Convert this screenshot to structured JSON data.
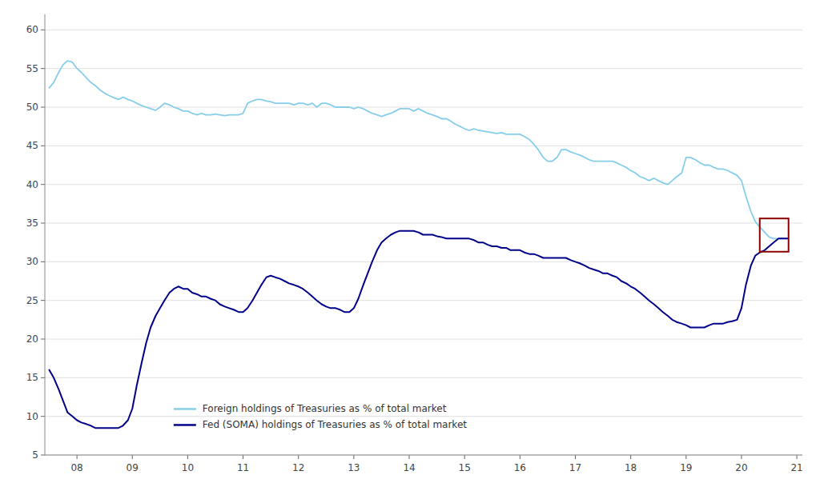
{
  "chart_data": {
    "type": "line",
    "x": [
      2007.5,
      2007.58,
      2007.67,
      2007.75,
      2007.83,
      2007.92,
      2008.0,
      2008.08,
      2008.17,
      2008.25,
      2008.33,
      2008.42,
      2008.5,
      2008.58,
      2008.67,
      2008.75,
      2008.83,
      2008.92,
      2009.0,
      2009.08,
      2009.17,
      2009.25,
      2009.33,
      2009.42,
      2009.5,
      2009.58,
      2009.67,
      2009.75,
      2009.83,
      2009.92,
      2010.0,
      2010.08,
      2010.17,
      2010.25,
      2010.33,
      2010.42,
      2010.5,
      2010.58,
      2010.67,
      2010.75,
      2010.83,
      2010.92,
      2011.0,
      2011.08,
      2011.17,
      2011.25,
      2011.33,
      2011.42,
      2011.5,
      2011.58,
      2011.67,
      2011.75,
      2011.83,
      2011.92,
      2012.0,
      2012.08,
      2012.17,
      2012.25,
      2012.33,
      2012.42,
      2012.5,
      2012.58,
      2012.67,
      2012.75,
      2012.83,
      2012.92,
      2013.0,
      2013.08,
      2013.17,
      2013.25,
      2013.33,
      2013.42,
      2013.5,
      2013.58,
      2013.67,
      2013.75,
      2013.83,
      2013.92,
      2014.0,
      2014.08,
      2014.17,
      2014.25,
      2014.33,
      2014.42,
      2014.5,
      2014.58,
      2014.67,
      2014.75,
      2014.83,
      2014.92,
      2015.0,
      2015.08,
      2015.17,
      2015.25,
      2015.33,
      2015.42,
      2015.5,
      2015.58,
      2015.67,
      2015.75,
      2015.83,
      2015.92,
      2016.0,
      2016.08,
      2016.17,
      2016.25,
      2016.33,
      2016.42,
      2016.5,
      2016.58,
      2016.67,
      2016.75,
      2016.83,
      2016.92,
      2017.0,
      2017.08,
      2017.17,
      2017.25,
      2017.33,
      2017.42,
      2017.5,
      2017.58,
      2017.67,
      2017.75,
      2017.83,
      2017.92,
      2018.0,
      2018.08,
      2018.17,
      2018.25,
      2018.33,
      2018.42,
      2018.5,
      2018.58,
      2018.67,
      2018.75,
      2018.83,
      2018.92,
      2019.0,
      2019.08,
      2019.17,
      2019.25,
      2019.33,
      2019.42,
      2019.5,
      2019.58,
      2019.67,
      2019.75,
      2019.83,
      2019.92,
      2020.0,
      2020.08,
      2020.17,
      2020.25,
      2020.33,
      2020.42,
      2020.5,
      2020.58,
      2020.67,
      2020.75,
      2020.83
    ],
    "series": [
      {
        "name": "Foreign holdings of Treasuries as % of total market",
        "color": "#87CEEB",
        "values": [
          52.5,
          53.2,
          54.5,
          55.5,
          56.0,
          55.8,
          55.0,
          54.5,
          53.8,
          53.2,
          52.8,
          52.2,
          51.8,
          51.5,
          51.2,
          51.0,
          51.3,
          51.0,
          50.8,
          50.5,
          50.2,
          50.0,
          49.8,
          49.6,
          50.0,
          50.5,
          50.3,
          50.0,
          49.8,
          49.5,
          49.5,
          49.2,
          49.0,
          49.2,
          49.0,
          49.0,
          49.1,
          49.0,
          48.9,
          49.0,
          49.0,
          49.0,
          49.2,
          50.5,
          50.8,
          51.0,
          51.0,
          50.8,
          50.7,
          50.5,
          50.5,
          50.5,
          50.5,
          50.3,
          50.5,
          50.5,
          50.3,
          50.5,
          50.0,
          50.5,
          50.5,
          50.3,
          50.0,
          50.0,
          50.0,
          50.0,
          49.8,
          50.0,
          49.8,
          49.5,
          49.2,
          49.0,
          48.8,
          49.0,
          49.2,
          49.5,
          49.8,
          49.8,
          49.8,
          49.5,
          49.8,
          49.5,
          49.2,
          49.0,
          48.8,
          48.5,
          48.5,
          48.2,
          47.8,
          47.5,
          47.2,
          47.0,
          47.2,
          47.0,
          46.9,
          46.8,
          46.7,
          46.6,
          46.7,
          46.5,
          46.5,
          46.5,
          46.5,
          46.2,
          45.8,
          45.2,
          44.5,
          43.5,
          43.0,
          43.0,
          43.5,
          44.5,
          44.5,
          44.2,
          44.0,
          43.8,
          43.5,
          43.2,
          43.0,
          43.0,
          43.0,
          43.0,
          43.0,
          42.8,
          42.5,
          42.2,
          41.8,
          41.5,
          41.0,
          40.8,
          40.5,
          40.8,
          40.5,
          40.2,
          40.0,
          40.5,
          41.0,
          41.5,
          43.5,
          43.5,
          43.2,
          42.8,
          42.5,
          42.5,
          42.2,
          42.0,
          42.0,
          41.8,
          41.5,
          41.2,
          40.5,
          38.5,
          36.5,
          35.2,
          34.5,
          33.8,
          33.2,
          33.0,
          33.0,
          33.0,
          33.0
        ]
      },
      {
        "name": "Fed (SOMA) holdings of Treasuries as % of total market",
        "color": "#00008B",
        "values": [
          16.0,
          15.0,
          13.5,
          12.0,
          10.5,
          10.0,
          9.5,
          9.2,
          9.0,
          8.8,
          8.5,
          8.5,
          8.5,
          8.5,
          8.5,
          8.5,
          8.8,
          9.5,
          11.0,
          14.0,
          17.0,
          19.5,
          21.5,
          23.0,
          24.0,
          25.0,
          26.0,
          26.5,
          26.8,
          26.5,
          26.5,
          26.0,
          25.8,
          25.5,
          25.5,
          25.2,
          25.0,
          24.5,
          24.2,
          24.0,
          23.8,
          23.5,
          23.5,
          24.0,
          25.0,
          26.0,
          27.0,
          28.0,
          28.2,
          28.0,
          27.8,
          27.5,
          27.2,
          27.0,
          26.8,
          26.5,
          26.0,
          25.5,
          25.0,
          24.5,
          24.2,
          24.0,
          24.0,
          23.8,
          23.5,
          23.5,
          24.0,
          25.2,
          27.0,
          28.5,
          30.0,
          31.5,
          32.5,
          33.0,
          33.5,
          33.8,
          34.0,
          34.0,
          34.0,
          34.0,
          33.8,
          33.5,
          33.5,
          33.5,
          33.3,
          33.2,
          33.0,
          33.0,
          33.0,
          33.0,
          33.0,
          33.0,
          32.8,
          32.5,
          32.5,
          32.2,
          32.0,
          32.0,
          31.8,
          31.8,
          31.5,
          31.5,
          31.5,
          31.2,
          31.0,
          31.0,
          30.8,
          30.5,
          30.5,
          30.5,
          30.5,
          30.5,
          30.5,
          30.2,
          30.0,
          29.8,
          29.5,
          29.2,
          29.0,
          28.8,
          28.5,
          28.5,
          28.2,
          28.0,
          27.5,
          27.2,
          26.8,
          26.5,
          26.0,
          25.5,
          25.0,
          24.5,
          24.0,
          23.5,
          23.0,
          22.5,
          22.2,
          22.0,
          21.8,
          21.5,
          21.5,
          21.5,
          21.5,
          21.8,
          22.0,
          22.0,
          22.0,
          22.2,
          22.3,
          22.5,
          24.0,
          27.0,
          29.5,
          30.8,
          31.2,
          31.5,
          32.0,
          32.5,
          33.0,
          33.0,
          33.0
        ]
      }
    ],
    "xlim": [
      2007.42,
      2021.1
    ],
    "xticks": [
      {
        "value": 2008,
        "label": "08"
      },
      {
        "value": 2009,
        "label": "09"
      },
      {
        "value": 2010,
        "label": "10"
      },
      {
        "value": 2011,
        "label": "11"
      },
      {
        "value": 2012,
        "label": "12"
      },
      {
        "value": 2013,
        "label": "13"
      },
      {
        "value": 2014,
        "label": "14"
      },
      {
        "value": 2015,
        "label": "15"
      },
      {
        "value": 2016,
        "label": "16"
      },
      {
        "value": 2017,
        "label": "17"
      },
      {
        "value": 2018,
        "label": "18"
      },
      {
        "value": 2019,
        "label": "19"
      },
      {
        "value": 2020,
        "label": "20"
      },
      {
        "value": 2021,
        "label": "21"
      }
    ],
    "ylim": [
      5,
      62
    ],
    "yticks": [
      5,
      10,
      15,
      20,
      25,
      30,
      35,
      40,
      45,
      50,
      55,
      60
    ],
    "grid": true,
    "legend": "lower left",
    "highlight_box": {
      "x": 2020.33,
      "y": 31.3,
      "width": 0.52,
      "height": 4.3,
      "color": "#8B0000"
    }
  }
}
